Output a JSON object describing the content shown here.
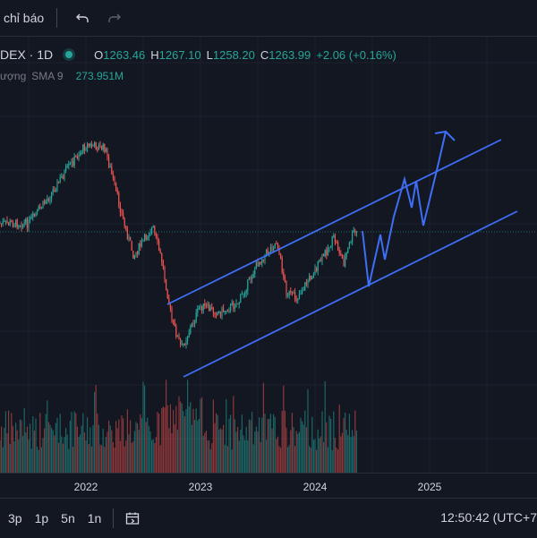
{
  "toolbar": {
    "indicators_label": "chỉ báo",
    "undo_icon": "undo-icon",
    "redo_icon": "redo-icon"
  },
  "legend": {
    "symbol": "DEX · 1D",
    "status_color": "#26a69a",
    "open_key": "O",
    "open": "1263.46",
    "high_key": "H",
    "high": "1267.10",
    "low_key": "L",
    "low": "1258.20",
    "close_key": "C",
    "close": "1263.99",
    "change": "+2.06 (+0.16%)",
    "volume_label": "ượng",
    "volume_ma": "SMA 9",
    "volume_value": "273.951M"
  },
  "colors": {
    "background": "#131722",
    "up": "#26a69a",
    "down": "#ef5350",
    "drawing": "#3d6ef5"
  },
  "x_axis": {
    "labels": [
      "2022",
      "2023",
      "2024",
      "2025"
    ]
  },
  "bottom_bar": {
    "ranges": [
      "3p",
      "1p",
      "5n",
      "1n"
    ],
    "calendar_icon": "calendar-range-icon",
    "clock": "12:50:42 (UTC+7"
  },
  "chart_data": {
    "type": "candlestick",
    "x_ticks": [
      "2022",
      "2023",
      "2024",
      "2025"
    ],
    "price_path_approx": [
      {
        "t": "2021-07",
        "price": 1290
      },
      {
        "t": "2021-09",
        "price": 1360
      },
      {
        "t": "2021-11",
        "price": 1440
      },
      {
        "t": "2022-01",
        "price": 1510
      },
      {
        "t": "2022-03",
        "price": 1500
      },
      {
        "t": "2022-05",
        "price": 1290
      },
      {
        "t": "2022-06",
        "price": 1200
      },
      {
        "t": "2022-08",
        "price": 1280
      },
      {
        "t": "2022-09",
        "price": 1180
      },
      {
        "t": "2022-10",
        "price": 1020
      },
      {
        "t": "2022-11",
        "price": 940
      },
      {
        "t": "2023-01",
        "price": 1060
      },
      {
        "t": "2023-03",
        "price": 1040
      },
      {
        "t": "2023-05",
        "price": 1070
      },
      {
        "t": "2023-07",
        "price": 1180
      },
      {
        "t": "2023-09",
        "price": 1240
      },
      {
        "t": "2023-10",
        "price": 1100
      },
      {
        "t": "2023-11",
        "price": 1080
      },
      {
        "t": "2024-01",
        "price": 1160
      },
      {
        "t": "2024-03",
        "price": 1250
      },
      {
        "t": "2024-04",
        "price": 1180
      },
      {
        "t": "2024-05",
        "price": 1264
      }
    ],
    "volume": "bars under price, mixed up/down colors",
    "drawings": {
      "channel": "ascending parallel channel (two blue lines)",
      "projection": "blue zigzag path with upward arrow"
    }
  }
}
